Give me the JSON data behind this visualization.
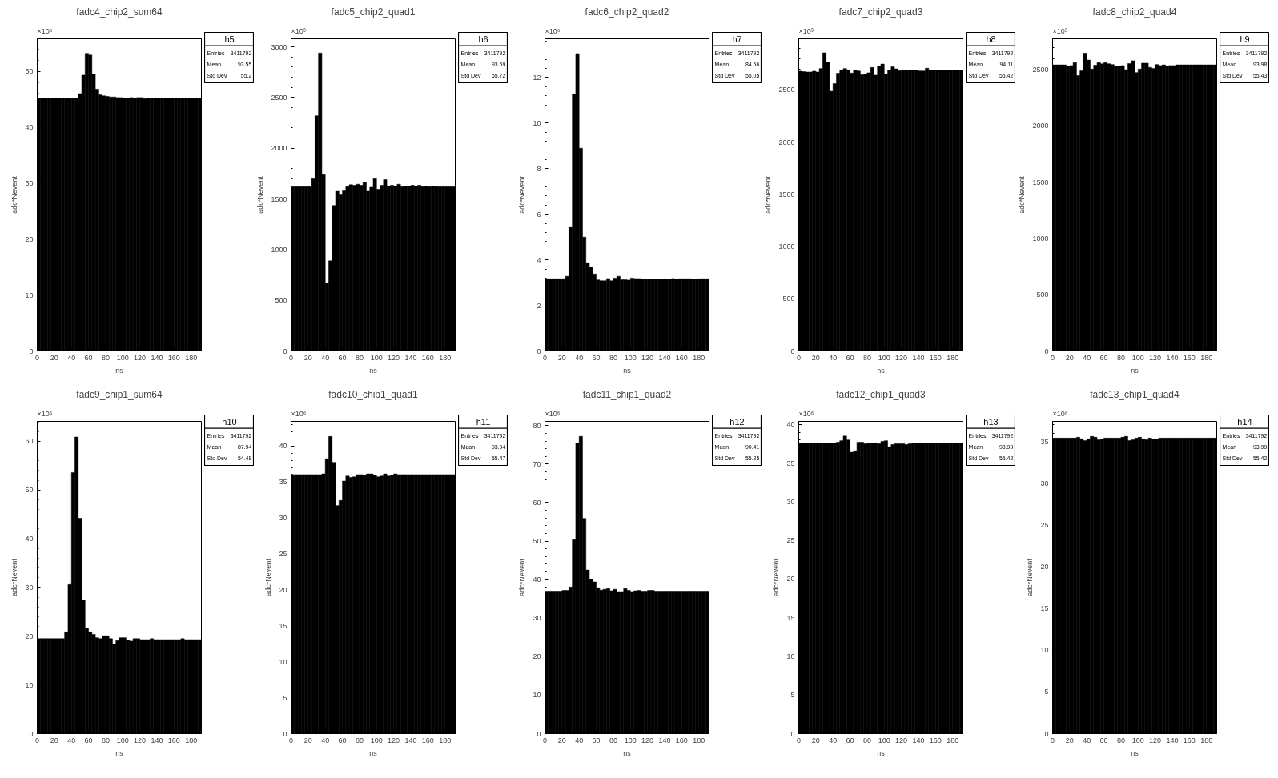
{
  "chart_data": [
    {
      "type": "histogram",
      "title": "fadc4_chip2_sum64",
      "xlabel": "ns",
      "ylabel": "adc*Nevent",
      "color": "#000000",
      "bins": [
        0,
        4,
        8,
        12,
        16,
        20,
        24,
        28,
        32,
        36,
        40,
        44,
        48,
        52,
        56,
        60,
        64,
        68,
        72,
        76,
        80,
        84,
        88,
        92,
        96,
        100,
        104,
        108,
        112,
        116,
        120,
        124,
        128,
        132,
        136,
        140,
        144,
        148,
        152,
        156,
        160,
        164,
        168,
        172,
        176,
        180,
        184,
        188,
        192
      ],
      "values": [
        45.2,
        45.2,
        45.2,
        45.2,
        45.2,
        45.2,
        45.2,
        45.2,
        45.2,
        45.2,
        45.2,
        45.2,
        46.0,
        49.3,
        53.2,
        52.9,
        49.5,
        46.8,
        45.8,
        45.6,
        45.5,
        45.4,
        45.4,
        45.3,
        45.3,
        45.2,
        45.2,
        45.3,
        45.2,
        45.3,
        45.3,
        45.1,
        45.2,
        45.2,
        45.2,
        45.2,
        45.2,
        45.2,
        45.2,
        45.2,
        45.2,
        45.2,
        45.2,
        45.2,
        45.2,
        45.2,
        45.2,
        45.2
      ],
      "xlim": [
        0,
        192
      ],
      "xticks": [
        0,
        20,
        40,
        60,
        80,
        100,
        120,
        140,
        160,
        180
      ],
      "ylim": [
        0,
        55.8
      ],
      "yticks": [
        0,
        10,
        20,
        30,
        40,
        50
      ],
      "annotations": [
        "×10⁶",
        "h5",
        "Entries",
        "3411792",
        "Mean",
        "93.55",
        "Std Dev",
        "55.2"
      ]
    },
    {
      "type": "histogram",
      "title": "fadc5_chip2_quad1",
      "xlabel": "ns",
      "ylabel": "adc*Nevent",
      "color": "#000000",
      "bins": [
        0,
        4,
        8,
        12,
        16,
        20,
        24,
        28,
        32,
        36,
        40,
        44,
        48,
        52,
        56,
        60,
        64,
        68,
        72,
        76,
        80,
        84,
        88,
        92,
        96,
        100,
        104,
        108,
        112,
        116,
        120,
        124,
        128,
        132,
        136,
        140,
        144,
        148,
        152,
        156,
        160,
        164,
        168,
        172,
        176,
        180,
        184,
        188,
        192
      ],
      "values": [
        1620,
        1620,
        1620,
        1620,
        1620,
        1620,
        1700,
        2320,
        2940,
        1740,
        670,
        890,
        1435,
        1575,
        1540,
        1580,
        1620,
        1640,
        1635,
        1645,
        1635,
        1665,
        1575,
        1615,
        1700,
        1595,
        1635,
        1690,
        1625,
        1635,
        1625,
        1645,
        1620,
        1625,
        1625,
        1635,
        1625,
        1635,
        1620,
        1625,
        1620,
        1625,
        1620,
        1620,
        1620,
        1620,
        1620,
        1620
      ],
      "xlim": [
        0,
        192
      ],
      "xticks": [
        0,
        20,
        40,
        60,
        80,
        100,
        120,
        140,
        160,
        180
      ],
      "ylim": [
        0,
        3080
      ],
      "yticks": [
        0,
        500,
        1000,
        1500,
        2000,
        2500,
        3000
      ],
      "annotations": [
        "×10³",
        "h6",
        "Entries",
        "3411792",
        "Mean",
        "93.59",
        "Std Dev",
        "55.72"
      ]
    },
    {
      "type": "histogram",
      "title": "fadc6_chip2_quad2",
      "xlabel": "ns",
      "ylabel": "adc*Nevent",
      "color": "#000000",
      "bins": [
        0,
        4,
        8,
        12,
        16,
        20,
        24,
        28,
        32,
        36,
        40,
        44,
        48,
        52,
        56,
        60,
        64,
        68,
        72,
        76,
        80,
        84,
        88,
        92,
        96,
        100,
        104,
        108,
        112,
        116,
        120,
        124,
        128,
        132,
        136,
        140,
        144,
        148,
        152,
        156,
        160,
        164,
        168,
        172,
        176,
        180,
        184,
        188,
        192
      ],
      "values": [
        3.17,
        3.17,
        3.17,
        3.17,
        3.17,
        3.17,
        3.28,
        5.45,
        11.28,
        13.05,
        8.9,
        5.0,
        3.87,
        3.67,
        3.38,
        3.12,
        3.08,
        3.08,
        3.18,
        3.08,
        3.2,
        3.28,
        3.13,
        3.13,
        3.11,
        3.2,
        3.18,
        3.18,
        3.16,
        3.16,
        3.16,
        3.14,
        3.14,
        3.14,
        3.14,
        3.14,
        3.16,
        3.18,
        3.15,
        3.17,
        3.17,
        3.17,
        3.17,
        3.15,
        3.15,
        3.17,
        3.17,
        3.17
      ],
      "xlim": [
        0,
        192
      ],
      "xticks": [
        0,
        20,
        40,
        60,
        80,
        100,
        120,
        140,
        160,
        180
      ],
      "ylim": [
        0,
        13.7
      ],
      "yticks": [
        0,
        2,
        4,
        6,
        8,
        10,
        12
      ],
      "annotations": [
        "×10⁶",
        "h7",
        "Entries",
        "3411792",
        "Mean",
        "84.56",
        "Std Dev",
        "55.05"
      ]
    },
    {
      "type": "histogram",
      "title": "fadc7_chip2_quad3",
      "xlabel": "ns",
      "ylabel": "adc*Nevent",
      "color": "#000000",
      "bins": [
        0,
        4,
        8,
        12,
        16,
        20,
        24,
        28,
        32,
        36,
        40,
        44,
        48,
        52,
        56,
        60,
        64,
        68,
        72,
        76,
        80,
        84,
        88,
        92,
        96,
        100,
        104,
        108,
        112,
        116,
        120,
        124,
        128,
        132,
        136,
        140,
        144,
        148,
        152,
        156,
        160,
        164,
        168,
        172,
        176,
        180,
        184,
        188,
        192
      ],
      "values": [
        2680,
        2675,
        2672,
        2672,
        2680,
        2672,
        2705,
        2855,
        2765,
        2487,
        2560,
        2660,
        2690,
        2705,
        2692,
        2662,
        2690,
        2682,
        2645,
        2652,
        2665,
        2715,
        2642,
        2725,
        2748,
        2652,
        2690,
        2722,
        2702,
        2685,
        2690,
        2690,
        2690,
        2690,
        2690,
        2682,
        2682,
        2708,
        2690,
        2690,
        2690,
        2690,
        2690,
        2690,
        2690,
        2690,
        2690,
        2690
      ],
      "xlim": [
        0,
        192
      ],
      "xticks": [
        0,
        20,
        40,
        60,
        80,
        100,
        120,
        140,
        160,
        180
      ],
      "ylim": [
        0,
        2990
      ],
      "yticks": [
        0,
        500,
        1000,
        1500,
        2000,
        2500
      ],
      "annotations": [
        "×10³",
        "h8",
        "Entries",
        "3411792",
        "Mean",
        "94.11",
        "Std Dev",
        "55.42"
      ]
    },
    {
      "type": "histogram",
      "title": "fadc8_chip2_quad4",
      "xlabel": "ns",
      "ylabel": "adc*Nevent",
      "color": "#000000",
      "bins": [
        0,
        4,
        8,
        12,
        16,
        20,
        24,
        28,
        32,
        36,
        40,
        44,
        48,
        52,
        56,
        60,
        64,
        68,
        72,
        76,
        80,
        84,
        88,
        92,
        96,
        100,
        104,
        108,
        112,
        116,
        120,
        124,
        128,
        132,
        136,
        140,
        144,
        148,
        152,
        156,
        160,
        164,
        168,
        172,
        176,
        180,
        184,
        188,
        192
      ],
      "values": [
        2543,
        2543,
        2543,
        2543,
        2531,
        2537,
        2564,
        2448,
        2491,
        2647,
        2586,
        2506,
        2540,
        2564,
        2552,
        2564,
        2552,
        2546,
        2531,
        2531,
        2537,
        2500,
        2555,
        2580,
        2475,
        2506,
        2558,
        2558,
        2521,
        2512,
        2546,
        2537,
        2543,
        2534,
        2537,
        2537,
        2543,
        2543,
        2543,
        2543,
        2543,
        2543,
        2543,
        2543,
        2543,
        2543,
        2543,
        2543
      ],
      "xlim": [
        0,
        192
      ],
      "xticks": [
        0,
        20,
        40,
        60,
        80,
        100,
        120,
        140,
        160,
        180
      ],
      "ylim": [
        0,
        2775
      ],
      "yticks": [
        0,
        500,
        1000,
        1500,
        2000,
        2500
      ],
      "annotations": [
        "×10³",
        "h9",
        "Entries",
        "3411792",
        "Mean",
        "93.98",
        "Std Dev",
        "55.43"
      ]
    },
    {
      "type": "histogram",
      "title": "fadc9_chip1_sum64",
      "xlabel": "ns",
      "ylabel": "adc*Nevent",
      "color": "#000000",
      "bins": [
        0,
        4,
        8,
        12,
        16,
        20,
        24,
        28,
        32,
        36,
        40,
        44,
        48,
        52,
        56,
        60,
        64,
        68,
        72,
        76,
        80,
        84,
        88,
        92,
        96,
        100,
        104,
        108,
        112,
        116,
        120,
        124,
        128,
        132,
        136,
        140,
        144,
        148,
        152,
        156,
        160,
        164,
        168,
        172,
        176,
        180,
        184,
        188,
        192
      ],
      "values": [
        19.5,
        19.5,
        19.5,
        19.5,
        19.5,
        19.5,
        19.5,
        19.5,
        20.9,
        30.6,
        53.6,
        60.9,
        44.2,
        27.4,
        21.7,
        20.9,
        20.4,
        19.7,
        19.5,
        20.1,
        20.1,
        19.5,
        18.4,
        19.1,
        19.7,
        19.7,
        19.2,
        19.0,
        19.5,
        19.5,
        19.3,
        19.3,
        19.3,
        19.5,
        19.3,
        19.3,
        19.3,
        19.3,
        19.3,
        19.3,
        19.3,
        19.3,
        19.5,
        19.3,
        19.3,
        19.3,
        19.3,
        19.3
      ],
      "xlim": [
        0,
        192
      ],
      "xticks": [
        0,
        20,
        40,
        60,
        80,
        100,
        120,
        140,
        160,
        180
      ],
      "ylim": [
        0,
        64.1
      ],
      "yticks": [
        0,
        10,
        20,
        30,
        40,
        50,
        60
      ],
      "annotations": [
        "×10⁶",
        "h10",
        "Entries",
        "3411792",
        "Mean",
        "87.94",
        "Std Dev",
        "54.48"
      ]
    },
    {
      "type": "histogram",
      "title": "fadc10_chip1_quad1",
      "xlabel": "ns",
      "ylabel": "adc*Nevent",
      "color": "#000000",
      "bins": [
        0,
        4,
        8,
        12,
        16,
        20,
        24,
        28,
        32,
        36,
        40,
        44,
        48,
        52,
        56,
        60,
        64,
        68,
        72,
        76,
        80,
        84,
        88,
        92,
        96,
        100,
        104,
        108,
        112,
        116,
        120,
        124,
        128,
        132,
        136,
        140,
        144,
        148,
        152,
        156,
        160,
        164,
        168,
        172,
        176,
        180,
        184,
        188,
        192
      ],
      "values": [
        36.0,
        36.0,
        36.0,
        36.0,
        36.0,
        36.0,
        36.0,
        36.0,
        36.0,
        36.1,
        38.2,
        41.3,
        37.7,
        31.7,
        32.4,
        35.1,
        35.8,
        35.6,
        35.7,
        36.0,
        36.0,
        35.9,
        36.1,
        36.1,
        35.9,
        35.7,
        35.8,
        36.1,
        35.8,
        35.9,
        36.1,
        36.0,
        36.0,
        36.0,
        36.0,
        36.0,
        36.0,
        36.0,
        36.0,
        36.0,
        36.0,
        36.0,
        36.0,
        36.0,
        36.0,
        36.0,
        36.0,
        36.0
      ],
      "xlim": [
        0,
        192
      ],
      "xticks": [
        0,
        20,
        40,
        60,
        80,
        100,
        120,
        140,
        160,
        180
      ],
      "ylim": [
        0,
        43.4
      ],
      "yticks": [
        0,
        5,
        10,
        15,
        20,
        25,
        30,
        35,
        40
      ],
      "annotations": [
        "×10⁶",
        "h11",
        "Entries",
        "3411792",
        "Mean",
        "93.94",
        "Std Dev",
        "55.47"
      ]
    },
    {
      "type": "histogram",
      "title": "fadc11_chip1_quad2",
      "xlabel": "ns",
      "ylabel": "adc*Nevent",
      "color": "#000000",
      "bins": [
        0,
        4,
        8,
        12,
        16,
        20,
        24,
        28,
        32,
        36,
        40,
        44,
        48,
        52,
        56,
        60,
        64,
        68,
        72,
        76,
        80,
        84,
        88,
        92,
        96,
        100,
        104,
        108,
        112,
        116,
        120,
        124,
        128,
        132,
        136,
        140,
        144,
        148,
        152,
        156,
        160,
        164,
        168,
        172,
        176,
        180,
        184,
        188,
        192
      ],
      "values": [
        37.0,
        37.0,
        37.0,
        37.0,
        37.0,
        37.2,
        37.2,
        38.1,
        50.4,
        75.5,
        77.2,
        55.9,
        42.5,
        40.1,
        39.4,
        37.9,
        37.3,
        37.5,
        37.7,
        37.1,
        37.5,
        36.9,
        36.9,
        37.7,
        37.2,
        36.9,
        37.1,
        37.2,
        37.0,
        37.0,
        37.2,
        37.2,
        37.0,
        37.0,
        37.0,
        37.0,
        37.0,
        37.0,
        37.0,
        37.0,
        37.0,
        37.0,
        37.0,
        37.0,
        37.0,
        37.0,
        37.0,
        37.0
      ],
      "xlim": [
        0,
        192
      ],
      "xticks": [
        0,
        20,
        40,
        60,
        80,
        100,
        120,
        140,
        160,
        180
      ],
      "ylim": [
        0,
        81.1
      ],
      "yticks": [
        0,
        10,
        20,
        30,
        40,
        50,
        60,
        70,
        80
      ],
      "annotations": [
        "×10⁶",
        "h12",
        "Entries",
        "3411792",
        "Mean",
        "90.41",
        "Std Dev",
        "55.25"
      ]
    },
    {
      "type": "histogram",
      "title": "fadc12_chip1_quad3",
      "xlabel": "ns",
      "ylabel": "adc*Nevent",
      "color": "#000000",
      "bins": [
        0,
        4,
        8,
        12,
        16,
        20,
        24,
        28,
        32,
        36,
        40,
        44,
        48,
        52,
        56,
        60,
        64,
        68,
        72,
        76,
        80,
        84,
        88,
        92,
        96,
        100,
        104,
        108,
        112,
        116,
        120,
        124,
        128,
        132,
        136,
        140,
        144,
        148,
        152,
        156,
        160,
        164,
        168,
        172,
        176,
        180,
        184,
        188,
        192
      ],
      "values": [
        37.6,
        37.6,
        37.6,
        37.6,
        37.6,
        37.6,
        37.6,
        37.6,
        37.6,
        37.6,
        37.6,
        37.7,
        37.9,
        38.5,
        38.0,
        36.4,
        36.6,
        37.7,
        37.7,
        37.5,
        37.6,
        37.6,
        37.6,
        37.5,
        37.8,
        37.9,
        37.1,
        37.4,
        37.5,
        37.5,
        37.5,
        37.4,
        37.5,
        37.6,
        37.6,
        37.6,
        37.6,
        37.6,
        37.6,
        37.6,
        37.6,
        37.6,
        37.6,
        37.6,
        37.6,
        37.6,
        37.6,
        37.6
      ],
      "xlim": [
        0,
        192
      ],
      "xticks": [
        0,
        20,
        40,
        60,
        80,
        100,
        120,
        140,
        160,
        180
      ],
      "ylim": [
        0,
        40.4
      ],
      "yticks": [
        0,
        5,
        10,
        15,
        20,
        25,
        30,
        35,
        40
      ],
      "annotations": [
        "×10⁶",
        "h13",
        "Entries",
        "3411792",
        "Mean",
        "93.99",
        "Std Dev",
        "55.42"
      ]
    },
    {
      "type": "histogram",
      "title": "fadc13_chip1_quad4",
      "xlabel": "ns",
      "ylabel": "adc*Nevent",
      "color": "#000000",
      "bins": [
        0,
        4,
        8,
        12,
        16,
        20,
        24,
        28,
        32,
        36,
        40,
        44,
        48,
        52,
        56,
        60,
        64,
        68,
        72,
        76,
        80,
        84,
        88,
        92,
        96,
        100,
        104,
        108,
        112,
        116,
        120,
        124,
        128,
        132,
        136,
        140,
        144,
        148,
        152,
        156,
        160,
        164,
        168,
        172,
        176,
        180,
        184,
        188,
        192
      ],
      "values": [
        35.4,
        35.4,
        35.4,
        35.4,
        35.4,
        35.4,
        35.4,
        35.5,
        35.3,
        35.1,
        35.3,
        35.6,
        35.5,
        35.2,
        35.3,
        35.4,
        35.4,
        35.4,
        35.4,
        35.4,
        35.5,
        35.6,
        35.1,
        35.2,
        35.4,
        35.5,
        35.3,
        35.2,
        35.4,
        35.3,
        35.3,
        35.4,
        35.4,
        35.4,
        35.4,
        35.4,
        35.4,
        35.4,
        35.4,
        35.4,
        35.4,
        35.4,
        35.4,
        35.4,
        35.4,
        35.4,
        35.4,
        35.4
      ],
      "xlim": [
        0,
        192
      ],
      "xticks": [
        0,
        20,
        40,
        60,
        80,
        100,
        120,
        140,
        160,
        180
      ],
      "ylim": [
        0,
        37.4
      ],
      "yticks": [
        0,
        5,
        10,
        15,
        20,
        25,
        30,
        35
      ],
      "annotations": [
        "×10⁶",
        "h14",
        "Entries",
        "3411792",
        "Mean",
        "93.99",
        "Std Dev",
        "55.42"
      ]
    }
  ]
}
